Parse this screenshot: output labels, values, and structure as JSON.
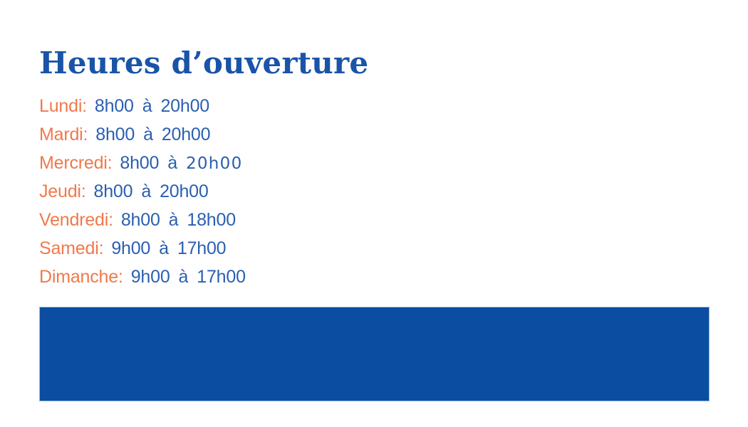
{
  "page": {
    "title": "Heures d’ouverture",
    "colors": {
      "title": "#1a54a8",
      "day": "#f0794b",
      "time": "#2a5fb0",
      "banner": "#0b4da1",
      "banner_edge": "#9cb8dc",
      "background": "#ffffff"
    }
  },
  "hours": {
    "separator": "à",
    "rows": [
      {
        "day": "Lundi:",
        "open": "8h00",
        "close": "20h00"
      },
      {
        "day": "Mardi:",
        "open": "8h00",
        "close": "20h00"
      },
      {
        "day": "Mercredi:",
        "open": "8h00",
        "close": "20h00",
        "close_style": "wide"
      },
      {
        "day": "Jeudi:",
        "open": "8h00",
        "close": "20h00"
      },
      {
        "day": "Vendredi:",
        "open": "8h00",
        "close": "18h00"
      },
      {
        "day": "Samedi:",
        "open": "9h00",
        "close": "17h00"
      },
      {
        "day": "Dimanche:",
        "open": "9h00",
        "close": "17h00"
      }
    ]
  }
}
